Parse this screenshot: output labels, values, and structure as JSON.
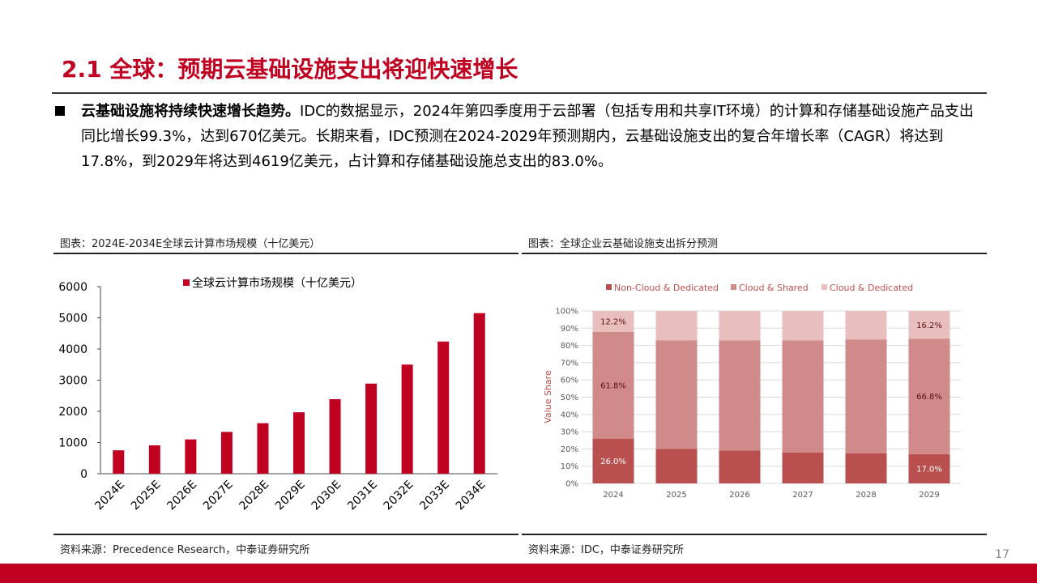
{
  "slide": {
    "title": "2.1 全球：预期云基础设施支出将迎快速增长",
    "bullet_bold": "云基础设施将持续快速增长趋势。",
    "bullet_text": "IDC的数据显示，2024年第四季度用于云部署（包括专用和共享IT环境）的计算和存储基础设施产品支出同比增长99.3%，达到670亿美元。长期来看，IDC预测在2024-2029年预测期内，云基础设施支出的复合年增长率（CAGR）将达到17.8%，到2029年将达到4619亿美元，占计算和存储基础设施总支出的83.0%。",
    "page_number": "17"
  },
  "left_panel": {
    "caption": "图表：2024E-2034E全球云计算市场规模（十亿美元）",
    "source": "资料来源：Precedence Research，中泰证券研究所"
  },
  "right_panel": {
    "caption": "图表：全球企业云基础设施支出拆分预测",
    "source": "资料来源：IDC，中泰证券研究所"
  },
  "chart_data": [
    {
      "type": "bar",
      "categories": [
        "2024E",
        "2025E",
        "2026E",
        "2027E",
        "2028E",
        "2029E",
        "2030E",
        "2031E",
        "2032E",
        "2033E",
        "2034E"
      ],
      "series": [
        {
          "name": "全球云计算市场规模（十亿美元）",
          "values": [
            750,
            910,
            1100,
            1340,
            1620,
            1970,
            2390,
            2890,
            3500,
            4240,
            5150
          ],
          "color": "#c00020"
        }
      ],
      "ylim": [
        0,
        6000
      ],
      "yticks": [
        0,
        1000,
        2000,
        3000,
        4000,
        5000,
        6000
      ],
      "legend": "top",
      "grid": false
    },
    {
      "type": "bar",
      "stacked": true,
      "categories": [
        "2024",
        "2025",
        "2026",
        "2027",
        "2028",
        "2029"
      ],
      "series": [
        {
          "name": "Non-Cloud & Dedicated",
          "values": [
            26.0,
            20.0,
            19.0,
            18.0,
            17.5,
            17.0
          ],
          "color": "#b9504f",
          "labels": [
            "26.0%",
            "",
            "",
            "",
            "",
            "17.0%"
          ]
        },
        {
          "name": "Cloud & Shared",
          "values": [
            61.8,
            63.0,
            64.0,
            65.0,
            66.0,
            66.8
          ],
          "color": "#d08a89",
          "labels": [
            "61.8%",
            "",
            "",
            "",
            "",
            "66.8%"
          ]
        },
        {
          "name": "Cloud & Dedicated",
          "values": [
            12.2,
            17.0,
            17.0,
            17.0,
            16.5,
            16.2
          ],
          "color": "#e8bfbd",
          "labels": [
            "12.2%",
            "",
            "",
            "",
            "",
            "16.2%"
          ]
        }
      ],
      "ylabel": "Value Share",
      "ylim": [
        0,
        100
      ],
      "yticks": [
        "0%",
        "10%",
        "20%",
        "30%",
        "40%",
        "50%",
        "60%",
        "70%",
        "80%",
        "90%",
        "100%"
      ],
      "legend": "top",
      "grid": true
    }
  ]
}
